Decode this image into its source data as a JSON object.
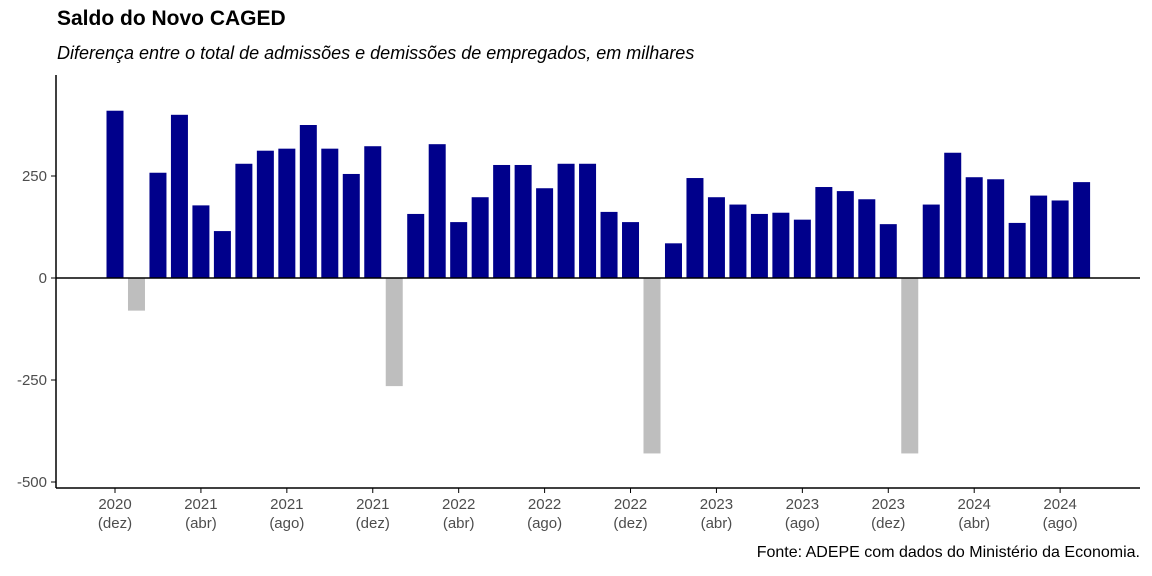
{
  "chart_data": {
    "type": "bar",
    "title": "Saldo do Novo CAGED",
    "subtitle": "Diferença entre o total de admissões e demissões de empregados, em milhares",
    "caption": "Fonte: ADEPE com dados do Ministério da Economia.",
    "xlabel": "",
    "ylabel": "",
    "ylim": [
      -510,
      470
    ],
    "yticks": [
      -500,
      -250,
      0,
      250
    ],
    "ytick_labels": [
      "-500",
      "-250",
      "0",
      "250"
    ],
    "grid": false,
    "legend": "none",
    "colors": {
      "positive": "#00008B",
      "negative": "#BEBEBE",
      "axis": "#000000"
    },
    "values": [
      410,
      -80,
      258,
      400,
      178,
      115,
      280,
      312,
      317,
      375,
      317,
      255,
      323,
      -265,
      157,
      328,
      137,
      198,
      277,
      277,
      220,
      280,
      280,
      162,
      137,
      -430,
      85,
      245,
      198,
      180,
      157,
      160,
      143,
      223,
      213,
      193,
      132,
      -430,
      180,
      307,
      247,
      242,
      135,
      202,
      190,
      235
    ],
    "xticks": [
      {
        "index": 0,
        "year": "2020",
        "month": "(dez)"
      },
      {
        "index": 4,
        "year": "2021",
        "month": "(abr)"
      },
      {
        "index": 8,
        "year": "2021",
        "month": "(ago)"
      },
      {
        "index": 12,
        "year": "2021",
        "month": "(dez)"
      },
      {
        "index": 16,
        "year": "2022",
        "month": "(abr)"
      },
      {
        "index": 20,
        "year": "2022",
        "month": "(ago)"
      },
      {
        "index": 24,
        "year": "2022",
        "month": "(dez)"
      },
      {
        "index": 28,
        "year": "2023",
        "month": "(abr)"
      },
      {
        "index": 32,
        "year": "2023",
        "month": "(ago)"
      },
      {
        "index": 36,
        "year": "2023",
        "month": "(dez)"
      },
      {
        "index": 40,
        "year": "2024",
        "month": "(abr)"
      },
      {
        "index": 44,
        "year": "2024",
        "month": "(ago)"
      }
    ]
  }
}
